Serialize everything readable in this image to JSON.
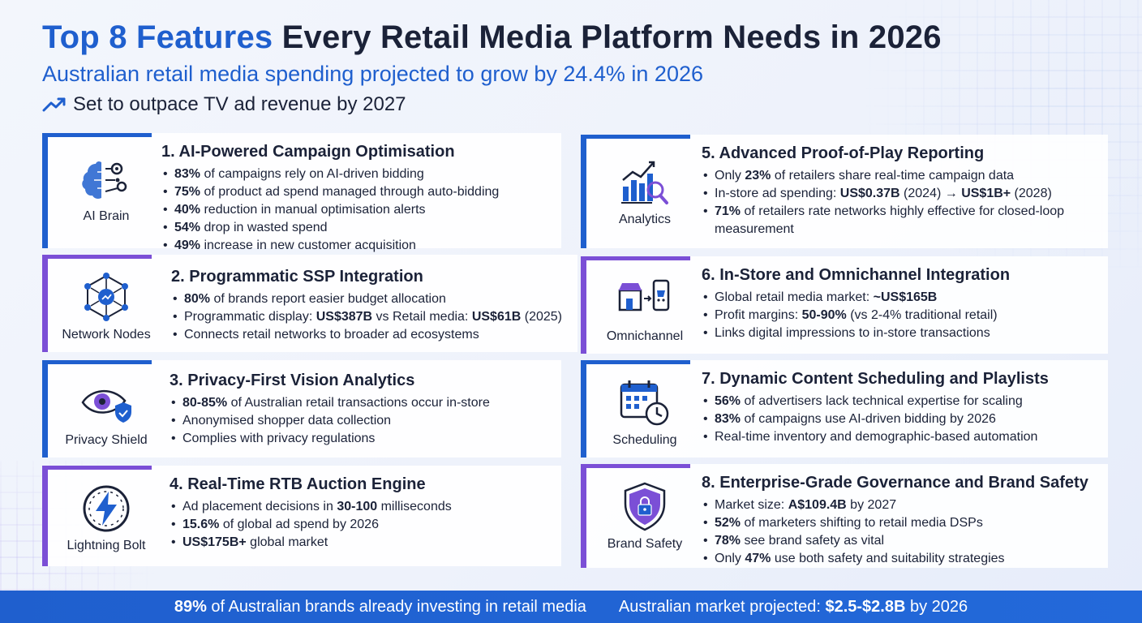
{
  "header": {
    "title_accent": "Top 8 Features",
    "title_rest": "Every Retail Media Platform Needs in 2026",
    "subtitle": "Australian retail media spending projected to grow by 24.4% in 2026",
    "trend_text": "Set to outpace TV ad revenue by 2027",
    "trend_icon": "trending-up-icon"
  },
  "colors": {
    "blue": "#1f5fce",
    "purple": "#7b4fd6",
    "text": "#1b2238"
  },
  "features": [
    {
      "title": "1. AI-Powered Campaign Optimisation",
      "icon": "ai-brain-icon",
      "icon_label": "AI Brain",
      "bullets": [
        {
          "b": "83%",
          "t": " of campaigns rely on AI-driven bidding"
        },
        {
          "b": "75%",
          "t": " of product ad spend managed through auto-bidding"
        },
        {
          "b": "40%",
          "t": " reduction in manual optimisation alerts"
        },
        {
          "b": "54%",
          "t": " drop in wasted spend"
        },
        {
          "b": "49%",
          "t": " increase in new customer acquisition"
        }
      ]
    },
    {
      "title": "2. Programmatic SSP Integration",
      "icon": "network-nodes-icon",
      "icon_label": "Network Nodes",
      "bullets": [
        {
          "b": "80%",
          "t": " of brands report easier budget allocation"
        },
        {
          "p1": "Programmatic display: ",
          "b1": "US$387B",
          "p2": " vs Retail media: ",
          "b2": "US$61B",
          "p3": " (2025)"
        },
        {
          "t": "Connects retail networks to broader ad ecosystems"
        }
      ]
    },
    {
      "title": "3. Privacy-First Vision Analytics",
      "icon": "privacy-shield-icon",
      "icon_label": "Privacy Shield",
      "bullets": [
        {
          "b": "80-85%",
          "t": " of Australian retail transactions occur in-store"
        },
        {
          "t": "Anonymised shopper data collection"
        },
        {
          "t": "Complies with privacy regulations"
        }
      ]
    },
    {
      "title": "4. Real-Time RTB Auction Engine",
      "icon": "lightning-bolt-icon",
      "icon_label": "Lightning Bolt",
      "bullets": [
        {
          "p1": "Ad placement decisions in ",
          "b1": "30-100",
          "p2": " milliseconds"
        },
        {
          "b": "15.6%",
          "t": " of global ad spend by 2026"
        },
        {
          "b": "US$175B+",
          "t": " global market"
        }
      ]
    },
    {
      "title": "5. Advanced Proof-of-Play Reporting",
      "icon": "analytics-icon",
      "icon_label": "Analytics",
      "bullets": [
        {
          "p1": "Only ",
          "b1": "23%",
          "p2": " of retailers share real-time campaign data"
        },
        {
          "p1": "In-store ad spending: ",
          "b1": "US$0.37B",
          "p2": " (2024) → ",
          "b2": "US$1B+",
          "p3": " (2028)"
        },
        {
          "b": "71%",
          "t": " of retailers rate networks highly effective for closed-loop measurement",
          "wrap": true
        }
      ]
    },
    {
      "title": "6. In-Store and Omnichannel Integration",
      "icon": "omnichannel-icon",
      "icon_label": "Omnichannel",
      "bullets": [
        {
          "p1": "Global retail media market: ",
          "b1": "~US$165B"
        },
        {
          "p1": "Profit margins: ",
          "b1": "50-90%",
          "p2": " (vs 2-4% traditional retail)"
        },
        {
          "t": "Links digital impressions to in-store transactions"
        }
      ]
    },
    {
      "title": "7. Dynamic Content Scheduling and Playlists",
      "icon": "scheduling-icon",
      "icon_label": "Scheduling",
      "bullets": [
        {
          "b": "56%",
          "t": " of advertisers lack technical expertise for scaling"
        },
        {
          "b": "83%",
          "t": " of campaigns use AI-driven bidding by 2026"
        },
        {
          "t": "Real-time inventory and demographic-based automation"
        }
      ]
    },
    {
      "title": "8. Enterprise-Grade Governance and Brand Safety",
      "icon": "brand-safety-icon",
      "icon_label": "Brand Safety",
      "bullets": [
        {
          "p1": "Market size: ",
          "b1": "A$109.4B",
          "p2": " by 2027"
        },
        {
          "b": "52%",
          "t": " of marketers shifting to retail media DSPs"
        },
        {
          "b": "78%",
          "t": " see brand safety as vital"
        },
        {
          "p1": "Only ",
          "b1": "47%",
          "p2": " use both safety and suitability strategies"
        }
      ]
    }
  ],
  "footer": {
    "left_b": "89%",
    "left_t": " of Australian brands already investing in retail media",
    "right_t": "Australian market projected: ",
    "right_b": "$2.5-$2.8B",
    "right_t2": " by 2026"
  }
}
